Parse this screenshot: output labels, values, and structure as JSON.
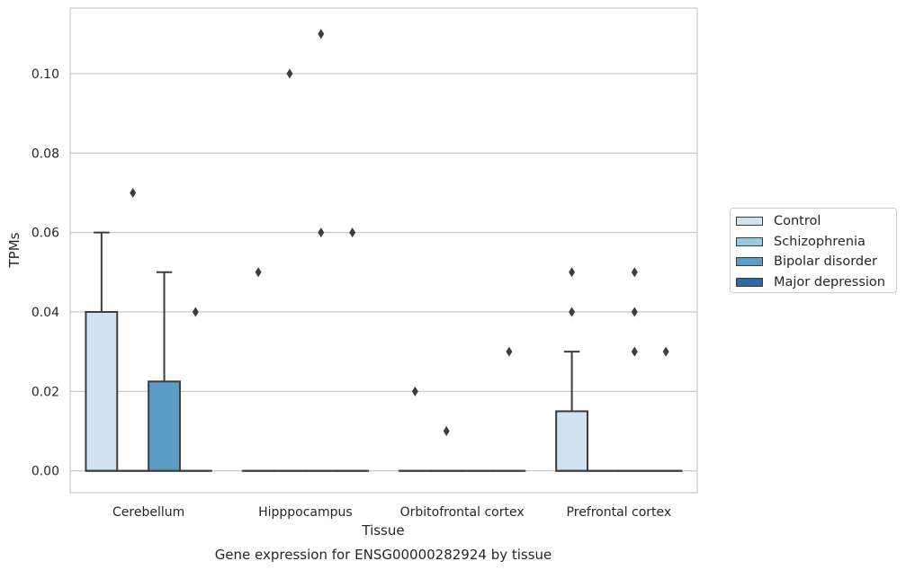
{
  "chart_data": {
    "type": "box",
    "xlabel": "Tissue",
    "ylabel": "TPMs",
    "caption": "Gene expression for ENSG00000282924 by tissue",
    "ylim": [
      -0.0055,
      0.1165
    ],
    "yticks": [
      "0.00",
      "0.02",
      "0.04",
      "0.06",
      "0.08",
      "0.10"
    ],
    "grid": true,
    "legend_position": "right",
    "categories": [
      "Cerebellum",
      "Hipppocampus",
      "Orbitofrontal cortex",
      "Prefrontal cortex"
    ],
    "series": [
      {
        "name": "Control",
        "color": "#d1e2f1",
        "boxes": [
          {
            "q1": 0,
            "median": 0,
            "q3": 0.04,
            "whisker_low": 0,
            "whisker_high": 0.06,
            "outliers": []
          },
          {
            "q1": 0,
            "median": 0,
            "q3": 0,
            "whisker_low": 0,
            "whisker_high": 0,
            "outliers": [
              0.05
            ]
          },
          {
            "q1": 0,
            "median": 0,
            "q3": 0,
            "whisker_low": 0,
            "whisker_high": 0,
            "outliers": [
              0.02
            ]
          },
          {
            "q1": 0,
            "median": 0,
            "q3": 0.015,
            "whisker_low": 0,
            "whisker_high": 0.03,
            "outliers": [
              0.04,
              0.05
            ]
          }
        ]
      },
      {
        "name": "Schizophrenia",
        "color": "#9ac8e0",
        "boxes": [
          {
            "q1": 0,
            "median": 0,
            "q3": 0,
            "whisker_low": 0,
            "whisker_high": 0,
            "outliers": [
              0.07
            ]
          },
          {
            "q1": 0,
            "median": 0,
            "q3": 0,
            "whisker_low": 0,
            "whisker_high": 0,
            "outliers": [
              0.1
            ]
          },
          {
            "q1": 0,
            "median": 0,
            "q3": 0,
            "whisker_low": 0,
            "whisker_high": 0,
            "outliers": [
              0.01
            ]
          },
          {
            "q1": 0,
            "median": 0,
            "q3": 0,
            "whisker_low": 0,
            "whisker_high": 0,
            "outliers": []
          }
        ]
      },
      {
        "name": "Bipolar disorder",
        "color": "#5a9cc6",
        "boxes": [
          {
            "q1": 0,
            "median": 0,
            "q3": 0.0225,
            "whisker_low": 0,
            "whisker_high": 0.05,
            "outliers": []
          },
          {
            "q1": 0,
            "median": 0,
            "q3": 0,
            "whisker_low": 0,
            "whisker_high": 0,
            "outliers": [
              0.11,
              0.06
            ]
          },
          {
            "q1": 0,
            "median": 0,
            "q3": 0,
            "whisker_low": 0,
            "whisker_high": 0,
            "outliers": []
          },
          {
            "q1": 0,
            "median": 0,
            "q3": 0,
            "whisker_low": 0,
            "whisker_high": 0,
            "outliers": [
              0.05,
              0.04,
              0.03
            ]
          }
        ]
      },
      {
        "name": "Major depression",
        "color": "#2b6aa6",
        "boxes": [
          {
            "q1": 0,
            "median": 0,
            "q3": 0,
            "whisker_low": 0,
            "whisker_high": 0,
            "outliers": [
              0.04
            ]
          },
          {
            "q1": 0,
            "median": 0,
            "q3": 0,
            "whisker_low": 0,
            "whisker_high": 0,
            "outliers": [
              0.06
            ]
          },
          {
            "q1": 0,
            "median": 0,
            "q3": 0,
            "whisker_low": 0,
            "whisker_high": 0,
            "outliers": [
              0.03
            ]
          },
          {
            "q1": 0,
            "median": 0,
            "q3": 0,
            "whisker_low": 0,
            "whisker_high": 0,
            "outliers": [
              0.03
            ]
          }
        ]
      }
    ]
  }
}
